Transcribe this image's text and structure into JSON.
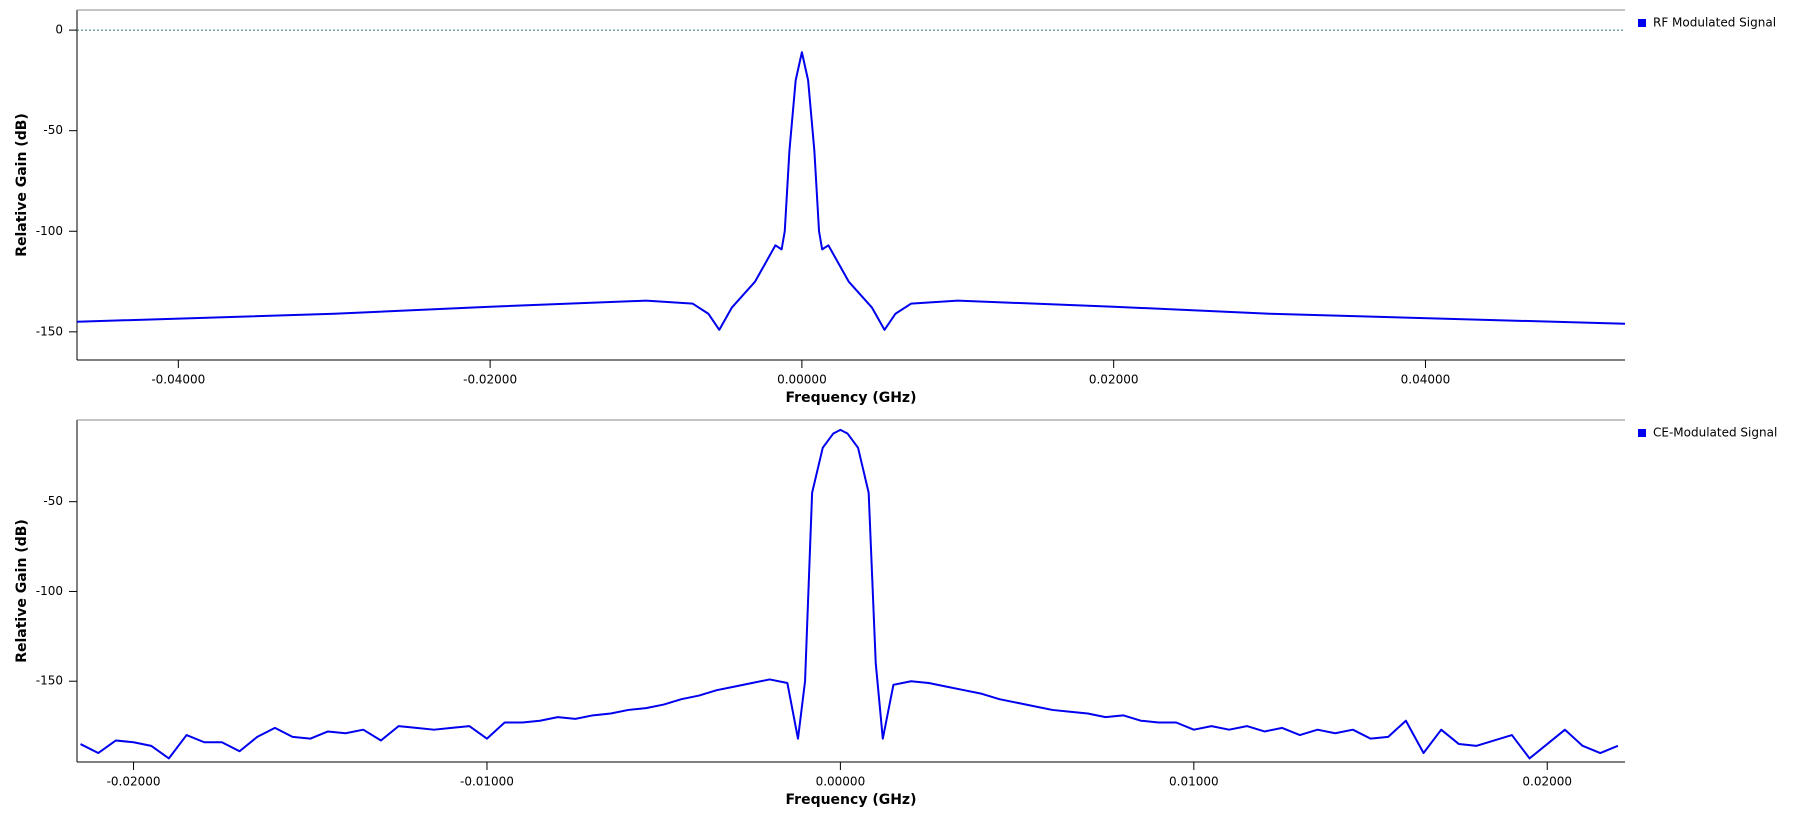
{
  "chart_data": [
    {
      "type": "line",
      "xlabel": "Frequency (GHz)",
      "ylabel": "Relative Gain (dB)",
      "xlim": [
        -0.0465,
        0.0528
      ],
      "ylim": [
        -164,
        10
      ],
      "xticks": [
        {
          "value": -0.04,
          "label": "-0.04000"
        },
        {
          "value": -0.02,
          "label": "-0.02000"
        },
        {
          "value": 0,
          "label": "0.00000"
        },
        {
          "value": 0.02,
          "label": "0.02000"
        },
        {
          "value": 0.04,
          "label": "0.04000"
        }
      ],
      "yticks": [
        0,
        -50,
        -100,
        -150
      ],
      "series": [
        {
          "name": "RF Modulated Signal",
          "color": "#0000ee",
          "x": [
            -0.0465,
            -0.03,
            -0.02,
            -0.01,
            -0.007,
            -0.006,
            -0.0053,
            -0.0045,
            -0.003,
            -0.0017,
            -0.0013,
            -0.0011,
            -0.0008,
            -0.0004,
            0,
            0.0004,
            0.0008,
            0.0011,
            0.0013,
            0.0017,
            0.003,
            0.0045,
            0.0053,
            0.006,
            0.007,
            0.01,
            0.02,
            0.03,
            0.0528
          ],
          "values": [
            -145,
            -141,
            -137.5,
            -134.5,
            -136,
            -141,
            -149,
            -138,
            -125,
            -107,
            -109,
            -100,
            -60,
            -25,
            -11,
            -25,
            -60,
            -100,
            -109,
            -107,
            -125,
            -138,
            -149,
            -141,
            -136,
            -134.5,
            -137.5,
            -141,
            -146
          ]
        }
      ]
    },
    {
      "type": "line",
      "xlabel": "Frequency (GHz)",
      "ylabel": "Relative Gain (dB)",
      "xlim": [
        -0.0216,
        0.0222
      ],
      "ylim": [
        -195,
        -4.5
      ],
      "xticks": [
        {
          "value": -0.02,
          "label": "-0.02000"
        },
        {
          "value": -0.01,
          "label": "-0.01000"
        },
        {
          "value": 0,
          "label": "0.00000"
        },
        {
          "value": 0.01,
          "label": "0.01000"
        },
        {
          "value": 0.02,
          "label": "0.02000"
        }
      ],
      "yticks": [
        -50,
        -100,
        -150
      ],
      "series": [
        {
          "name": "CE-Modulated Signal",
          "color": "#0000ee",
          "x": [
            -0.0215,
            -0.021,
            -0.0205,
            -0.02,
            -0.0195,
            -0.019,
            -0.0185,
            -0.018,
            -0.0175,
            -0.017,
            -0.0165,
            -0.016,
            -0.0155,
            -0.015,
            -0.0145,
            -0.014,
            -0.0135,
            -0.013,
            -0.0125,
            -0.012,
            -0.0115,
            -0.011,
            -0.0105,
            -0.01,
            -0.0095,
            -0.009,
            -0.0085,
            -0.008,
            -0.0075,
            -0.007,
            -0.0065,
            -0.006,
            -0.0055,
            -0.005,
            -0.0045,
            -0.004,
            -0.0035,
            -0.003,
            -0.0025,
            -0.002,
            -0.0015,
            -0.0012,
            -0.001,
            -0.0008,
            -0.0005,
            -0.0002,
            0,
            0.0002,
            0.0005,
            0.0008,
            0.001,
            0.0012,
            0.0015,
            0.002,
            0.0025,
            0.003,
            0.0035,
            0.004,
            0.0045,
            0.005,
            0.0055,
            0.006,
            0.0065,
            0.007,
            0.0075,
            0.008,
            0.0085,
            0.009,
            0.0095,
            0.01,
            0.0105,
            0.011,
            0.0115,
            0.012,
            0.0125,
            0.013,
            0.0135,
            0.014,
            0.0145,
            0.015,
            0.0155,
            0.016,
            0.0165,
            0.017,
            0.0175,
            0.018,
            0.0185,
            0.019,
            0.0195,
            0.02,
            0.0205,
            0.021,
            0.0215,
            0.022
          ],
          "values": [
            -185,
            -190,
            -183,
            -184,
            -186,
            -193,
            -180,
            -184,
            -184,
            -189,
            -181,
            -176,
            -181,
            -182,
            -178,
            -179,
            -177,
            -183,
            -175,
            -176,
            -177,
            -176,
            -175,
            -182,
            -173,
            -173,
            -172,
            -170,
            -171,
            -169,
            -168,
            -166,
            -165,
            -163,
            -160,
            -158,
            -155,
            -153,
            -151,
            -149,
            -151,
            -182,
            -150,
            -45,
            -20,
            -12,
            -10,
            -12,
            -20,
            -45,
            -140,
            -182,
            -152,
            -150,
            -151,
            -153,
            -155,
            -157,
            -160,
            -162,
            -164,
            -166,
            -167,
            -168,
            -170,
            -169,
            -172,
            -173,
            -173,
            -177,
            -175,
            -177,
            -175,
            -178,
            -176,
            -180,
            -177,
            -179,
            -177,
            -182,
            -181,
            -172,
            -190,
            -177,
            -185,
            -186,
            -183,
            -180,
            -193,
            -185,
            -177,
            -186,
            -190,
            -186
          ]
        }
      ]
    }
  ]
}
